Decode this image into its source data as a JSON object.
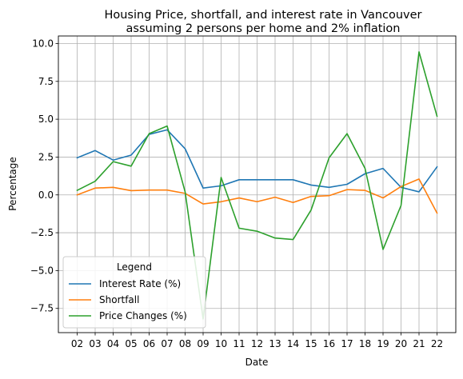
{
  "chart_data": {
    "type": "line",
    "title_line1": "Housing Price, shortfall, and interest rate in Vancouver",
    "title_line2": "assuming 2 persons per home and 2% inflation",
    "xlabel": "Date",
    "ylabel": "Percentage",
    "categories": [
      "02",
      "03",
      "04",
      "05",
      "06",
      "07",
      "08",
      "09",
      "10",
      "11",
      "12",
      "13",
      "14",
      "15",
      "16",
      "17",
      "18",
      "19",
      "20",
      "21",
      "22"
    ],
    "ylim": [
      -9.1,
      10.5
    ],
    "yticks": [
      -7.5,
      -5.0,
      -2.5,
      0.0,
      2.5,
      5.0,
      7.5,
      10.0
    ],
    "ytick_labels": [
      "−7.5",
      "−5.0",
      "−2.5",
      "0.0",
      "2.5",
      "5.0",
      "7.5",
      "10.0"
    ],
    "grid": true,
    "legend": {
      "title": "Legend",
      "placement": "lower-left"
    },
    "series": [
      {
        "name": "Interest Rate (%)",
        "color": "#1f77b4",
        "values": [
          2.45,
          2.93,
          2.3,
          2.63,
          4.0,
          4.3,
          3.05,
          0.45,
          0.6,
          1.0,
          1.0,
          1.0,
          1.0,
          0.65,
          0.5,
          0.7,
          1.4,
          1.75,
          0.5,
          0.2,
          1.85
        ]
      },
      {
        "name": "Shortfall",
        "color": "#ff7f0e",
        "values": [
          0.0,
          0.45,
          0.5,
          0.28,
          0.32,
          0.32,
          0.1,
          -0.6,
          -0.45,
          -0.2,
          -0.45,
          -0.15,
          -0.5,
          -0.1,
          -0.05,
          0.35,
          0.3,
          -0.2,
          0.55,
          1.05,
          -1.2
        ]
      },
      {
        "name": "Price Changes (%)",
        "color": "#2ca02c",
        "values": [
          0.3,
          0.9,
          2.2,
          1.9,
          4.05,
          4.55,
          0.2,
          -8.2,
          1.15,
          -2.2,
          -2.4,
          -2.85,
          -2.95,
          -1.0,
          2.45,
          4.05,
          1.75,
          -3.6,
          -0.7,
          9.45,
          5.2
        ]
      }
    ]
  }
}
